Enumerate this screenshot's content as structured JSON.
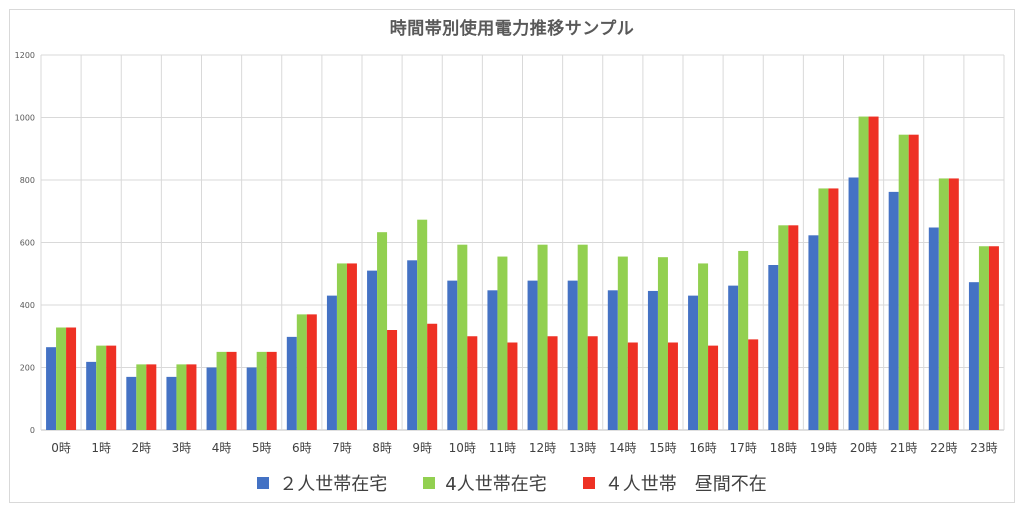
{
  "chart_data": {
    "type": "bar",
    "title": "時間帯別使用電力推移サンプル",
    "categories": [
      "0時",
      "1時",
      "2時",
      "3時",
      "4時",
      "5時",
      "6時",
      "7時",
      "8時",
      "9時",
      "10時",
      "11時",
      "12時",
      "13時",
      "14時",
      "15時",
      "16時",
      "17時",
      "18時",
      "19時",
      "20時",
      "21時",
      "22時",
      "23時"
    ],
    "series": [
      {
        "name": "２人世帯在宅",
        "color": "#4472c4",
        "values": [
          265,
          218,
          170,
          170,
          200,
          200,
          298,
          430,
          510,
          543,
          478,
          447,
          478,
          478,
          447,
          445,
          430,
          462,
          528,
          623,
          808,
          762,
          648,
          473
        ]
      },
      {
        "name": "4人世帯在宅",
        "color": "#92d050",
        "values": [
          328,
          270,
          210,
          210,
          250,
          250,
          370,
          533,
          633,
          673,
          593,
          555,
          593,
          593,
          555,
          553,
          533,
          573,
          655,
          773,
          1003,
          945,
          805,
          588
        ]
      },
      {
        "name": "４人世帯　昼間不在",
        "color": "#ee3124",
        "values": [
          328,
          270,
          210,
          210,
          250,
          250,
          370,
          533,
          320,
          340,
          300,
          280,
          300,
          300,
          280,
          280,
          270,
          290,
          655,
          773,
          1003,
          945,
          805,
          588
        ]
      }
    ],
    "ylim": [
      0,
      1200
    ],
    "yticks": [
      "0",
      "200",
      "400",
      "600",
      "800",
      "1000",
      "1200"
    ],
    "grid": true,
    "legend": "bottom"
  }
}
